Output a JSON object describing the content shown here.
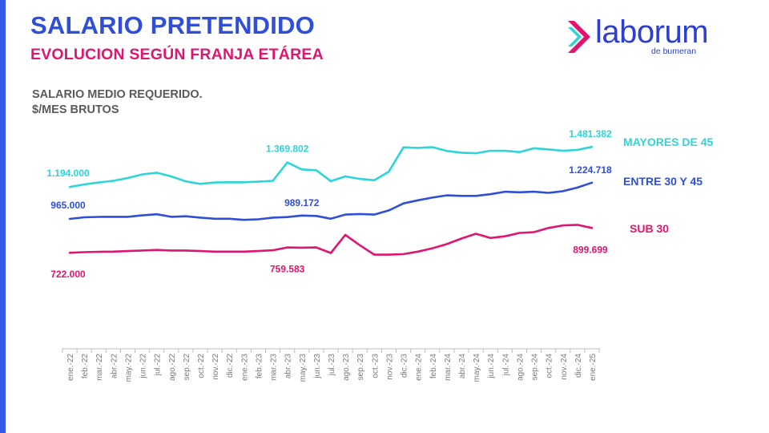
{
  "header": {
    "title": "SALARIO PRETENDIDO",
    "subtitle": "EVOLUCION SEGÚN FRANJA ETÁREA",
    "metric_line1": "SALARIO MEDIO REQUERIDO.",
    "metric_line2": "$/MES BRUTOS"
  },
  "logo": {
    "word": "laborum",
    "sub": "de bumeran",
    "icon": "chevron-arrow-icon"
  },
  "colors": {
    "accent_bar": "#3558e6",
    "title": "#2f4fd8",
    "subtitle": "#e0156f"
  },
  "chart_data": {
    "type": "line",
    "categories": [
      "ene.-22",
      "feb.-22",
      "mar.-22",
      "abr.-22",
      "may.-22",
      "jun.-22",
      "jul.-22",
      "ago.-22",
      "sep.-22",
      "oct.-22",
      "nov.-22",
      "dic.-22",
      "ene.-23",
      "feb.-23",
      "mar.-23",
      "abr.-23",
      "may.-23",
      "jun.-23",
      "jul.-23",
      "ago.-23",
      "sep.-23",
      "oct.-23",
      "nov.-23",
      "dic.-23",
      "ene.-24",
      "feb.-24",
      "mar.-24",
      "abr.-24",
      "may.-24",
      "jun.-24",
      "jul.-24",
      "ago.-24",
      "sep.-24",
      "oct.-24",
      "nov.-24",
      "dic.-24",
      "ene.-25"
    ],
    "series": [
      {
        "name": "MAYORES DE 45",
        "color": "#2dd4d8",
        "values": [
          1194000,
          1212000,
          1226000,
          1238000,
          1258000,
          1284000,
          1296000,
          1270000,
          1234000,
          1216000,
          1226000,
          1228000,
          1228000,
          1232000,
          1238000,
          1369802,
          1320000,
          1314000,
          1236000,
          1270000,
          1252000,
          1242000,
          1304000,
          1478000,
          1474000,
          1480000,
          1452000,
          1440000,
          1436000,
          1454000,
          1454000,
          1444000,
          1472000,
          1464000,
          1454000,
          1460000,
          1481382
        ]
      },
      {
        "name": "ENTRE 30 Y 45",
        "color": "#2f4fd8",
        "values": [
          965000,
          976000,
          979000,
          980000,
          980000,
          990000,
          998000,
          980000,
          984000,
          974000,
          966000,
          966000,
          958000,
          962000,
          974000,
          978000,
          989172,
          986000,
          966000,
          996000,
          1000000,
          996000,
          1026000,
          1076000,
          1098000,
          1118000,
          1134000,
          1130000,
          1130000,
          1142000,
          1160000,
          1156000,
          1160000,
          1152000,
          1164000,
          1190000,
          1224718
        ]
      },
      {
        "name": "SUB 30",
        "color": "#e0156f",
        "values": [
          722000,
          726000,
          729000,
          730000,
          734000,
          738000,
          742000,
          738000,
          738000,
          734000,
          730000,
          730000,
          730000,
          734000,
          740000,
          759583,
          758000,
          760000,
          720000,
          850000,
          776000,
          708000,
          708000,
          712000,
          730000,
          754000,
          784000,
          824000,
          858000,
          828000,
          840000,
          864000,
          870000,
          900000,
          918000,
          922000,
          899699
        ]
      }
    ],
    "labels": [
      {
        "series": 0,
        "index": 0,
        "text": "1.194.000",
        "color": "#2dd4d8"
      },
      {
        "series": 0,
        "index": 15,
        "text": "1.369.802",
        "color": "#2dd4d8"
      },
      {
        "series": 0,
        "index": 36,
        "text": "1.481.382",
        "color": "#2dd4d8"
      },
      {
        "series": 1,
        "index": 0,
        "text": "965.000",
        "color": "#2f4fd8"
      },
      {
        "series": 1,
        "index": 16,
        "text": "989.172",
        "color": "#2f4fd8"
      },
      {
        "series": 1,
        "index": 36,
        "text": "1.224.718",
        "color": "#2f4fd8"
      },
      {
        "series": 2,
        "index": 0,
        "text": "722.000",
        "color": "#e0156f"
      },
      {
        "series": 2,
        "index": 15,
        "text": "759.583",
        "color": "#e0156f"
      },
      {
        "series": 2,
        "index": 36,
        "text": "899.699",
        "color": "#e0156f"
      }
    ],
    "legend_placement": "right",
    "grid": false
  }
}
